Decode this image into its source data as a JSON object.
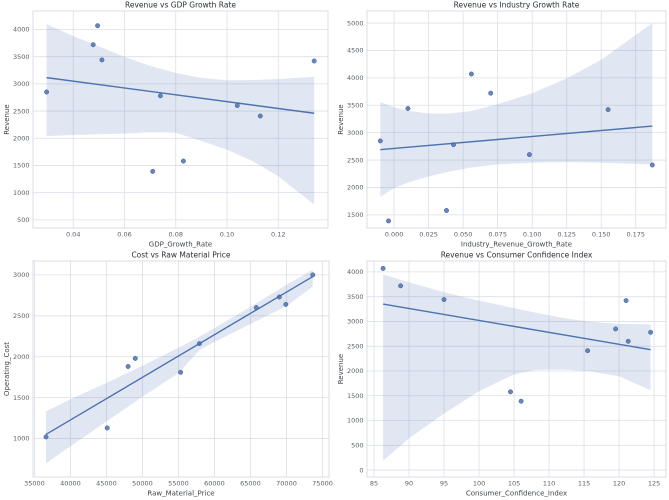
{
  "figure": {
    "background": "#ffffff"
  },
  "palette": {
    "accent_blue": "#4c72b0",
    "point_fill": "#4c72b0",
    "band_fill": "rgba(76,114,176,0.17)",
    "grid_color": "#dcdfe8",
    "spine_color": "#d5d9e1",
    "tick_color": "#5b6069",
    "axis_label_color": "#40454d",
    "title_color": "#2b3036"
  },
  "chart_data": [
    {
      "type": "scatter",
      "title": "Revenue vs GDP Growth Rate",
      "xlabel": "GDP_Growth_Rate",
      "ylabel": "Revenue",
      "grid": true,
      "legend": false,
      "xlim": [
        0.0243,
        0.1394
      ],
      "ylim": [
        350,
        4340
      ],
      "xticks": [
        0.04,
        0.06,
        0.08,
        0.1,
        0.12
      ],
      "xtick_labels": [
        "0.04",
        "0.06",
        "0.08",
        "0.10",
        "0.12"
      ],
      "yticks": [
        500,
        1000,
        1500,
        2000,
        2500,
        3000,
        3500,
        4000
      ],
      "ytick_labels": [
        "500",
        "1000",
        "1500",
        "2000",
        "2500",
        "3000",
        "3500",
        "4000"
      ],
      "points": [
        [
          0.0296,
          2850
        ],
        [
          0.0478,
          3720
        ],
        [
          0.0495,
          4070
        ],
        [
          0.0512,
          3440
        ],
        [
          0.071,
          1390
        ],
        [
          0.074,
          2780
        ],
        [
          0.083,
          1580
        ],
        [
          0.104,
          2600
        ],
        [
          0.113,
          2410
        ],
        [
          0.134,
          3420
        ]
      ],
      "regression_line": {
        "x": [
          0.0296,
          0.134
        ],
        "y": [
          3115,
          2460
        ]
      },
      "ci_band": {
        "x": [
          0.0296,
          0.04,
          0.05,
          0.06,
          0.07,
          0.08,
          0.09,
          0.1,
          0.11,
          0.12,
          0.134
        ],
        "lower": [
          2040,
          2060,
          2075,
          2085,
          2110,
          2100,
          1950,
          1790,
          1580,
          1300,
          780
        ],
        "upper": [
          4100,
          3880,
          3690,
          3500,
          3330,
          3200,
          3110,
          3065,
          3070,
          3090,
          3130
        ]
      }
    },
    {
      "type": "scatter",
      "title": "Revenue vs Industry Growth Rate",
      "xlabel": "Industry_Revenue_Growth_Rate",
      "ylabel": "Revenue",
      "grid": true,
      "legend": false,
      "xlim": [
        -0.0196,
        0.1969
      ],
      "ylim": [
        1260,
        5220
      ],
      "xticks": [
        0.0,
        0.025,
        0.05,
        0.075,
        0.1,
        0.125,
        0.15,
        0.175
      ],
      "xtick_labels": [
        "0.000",
        "0.025",
        "0.050",
        "0.075",
        "0.100",
        "0.125",
        "0.150",
        "0.175"
      ],
      "yticks": [
        1500,
        2000,
        2500,
        3000,
        3500,
        4000,
        4500,
        5000
      ],
      "ytick_labels": [
        "1500",
        "2000",
        "2500",
        "3000",
        "3500",
        "4000",
        "4500",
        "5000"
      ],
      "points": [
        [
          -0.01,
          2850
        ],
        [
          -0.004,
          1390
        ],
        [
          0.01,
          3440
        ],
        [
          0.038,
          1580
        ],
        [
          0.043,
          2780
        ],
        [
          0.056,
          4070
        ],
        [
          0.07,
          3720
        ],
        [
          0.098,
          2600
        ],
        [
          0.155,
          3420
        ],
        [
          0.187,
          2410
        ]
      ],
      "regression_line": {
        "x": [
          -0.01,
          0.187
        ],
        "y": [
          2690,
          3120
        ]
      },
      "ci_band": {
        "x": [
          -0.01,
          0.0,
          0.01,
          0.025,
          0.04,
          0.055,
          0.075,
          0.1,
          0.125,
          0.15,
          0.187
        ],
        "lower": [
          1830,
          1990,
          2090,
          2200,
          2290,
          2360,
          2420,
          2450,
          2460,
          2450,
          2420
        ],
        "upper": [
          3560,
          3460,
          3400,
          3350,
          3350,
          3390,
          3520,
          3720,
          3990,
          4330,
          5000
        ]
      }
    },
    {
      "type": "scatter",
      "title": "Cost vs Raw Material Price",
      "xlabel": "Raw_Material_Price",
      "ylabel": "Operating_Cost",
      "grid": true,
      "legend": false,
      "xlim": [
        34800,
        75900
      ],
      "ylim": [
        530,
        3170
      ],
      "xticks": [
        35000,
        40000,
        45000,
        50000,
        55000,
        60000,
        65000,
        70000,
        75000
      ],
      "xtick_labels": [
        "35000",
        "40000",
        "45000",
        "50000",
        "55000",
        "60000",
        "65000",
        "70000",
        "75000"
      ],
      "yticks": [
        1000,
        1500,
        2000,
        2500,
        3000
      ],
      "ytick_labels": [
        "1000",
        "1500",
        "2000",
        "2500",
        "3000"
      ],
      "points": [
        [
          36600,
          1020
        ],
        [
          45100,
          1130
        ],
        [
          48000,
          1880
        ],
        [
          49000,
          1980
        ],
        [
          55300,
          1810
        ],
        [
          57900,
          2160
        ],
        [
          65800,
          2600
        ],
        [
          69000,
          2730
        ],
        [
          69900,
          2640
        ],
        [
          73650,
          3000
        ]
      ],
      "regression_line": {
        "x": [
          36600,
          73650
        ],
        "y": [
          1050,
          2980
        ]
      },
      "ci_band": {
        "x": [
          36600,
          40000,
          45000,
          50000,
          55000,
          57900,
          60000,
          65000,
          70000,
          73650
        ],
        "lower": [
          695,
          905,
          1210,
          1510,
          1800,
          2080,
          2180,
          2400,
          2620,
          2855
        ],
        "upper": [
          1330,
          1480,
          1680,
          1890,
          2110,
          2245,
          2350,
          2610,
          2880,
          3065
        ]
      }
    },
    {
      "type": "scatter",
      "title": "Revenue vs Consumer Confidence Index",
      "xlabel": "Consumer_Confidence_Index",
      "ylabel": "Revenue",
      "grid": true,
      "legend": false,
      "xlim": [
        84.0,
        126.7
      ],
      "ylim": [
        -140,
        4220
      ],
      "xticks": [
        85,
        90,
        95,
        100,
        105,
        110,
        115,
        120,
        125
      ],
      "xtick_labels": [
        "85",
        "90",
        "95",
        "100",
        "105",
        "110",
        "115",
        "120",
        "125"
      ],
      "yticks": [
        0,
        500,
        1000,
        1500,
        2000,
        2500,
        3000,
        3500,
        4000
      ],
      "ytick_labels": [
        "0",
        "500",
        "1000",
        "1500",
        "2000",
        "2500",
        "3000",
        "3500",
        "4000"
      ],
      "points": [
        [
          86.3,
          4070
        ],
        [
          88.8,
          3720
        ],
        [
          95.0,
          3440
        ],
        [
          104.5,
          1580
        ],
        [
          106.0,
          1390
        ],
        [
          115.5,
          2410
        ],
        [
          119.5,
          2850
        ],
        [
          121.0,
          3420
        ],
        [
          121.3,
          2600
        ],
        [
          124.5,
          2780
        ]
      ],
      "regression_line": {
        "x": [
          86.3,
          124.5
        ],
        "y": [
          3350,
          2430
        ]
      },
      "ci_band": {
        "x": [
          86.3,
          90,
          95,
          100,
          105,
          108,
          112,
          116,
          120,
          124.5
        ],
        "lower": [
          190,
          640,
          1140,
          1590,
          1930,
          2020,
          2030,
          1990,
          1890,
          1610
        ],
        "upper": [
          3950,
          3790,
          3590,
          3420,
          3270,
          3180,
          3070,
          2990,
          2950,
          2940
        ]
      }
    }
  ]
}
